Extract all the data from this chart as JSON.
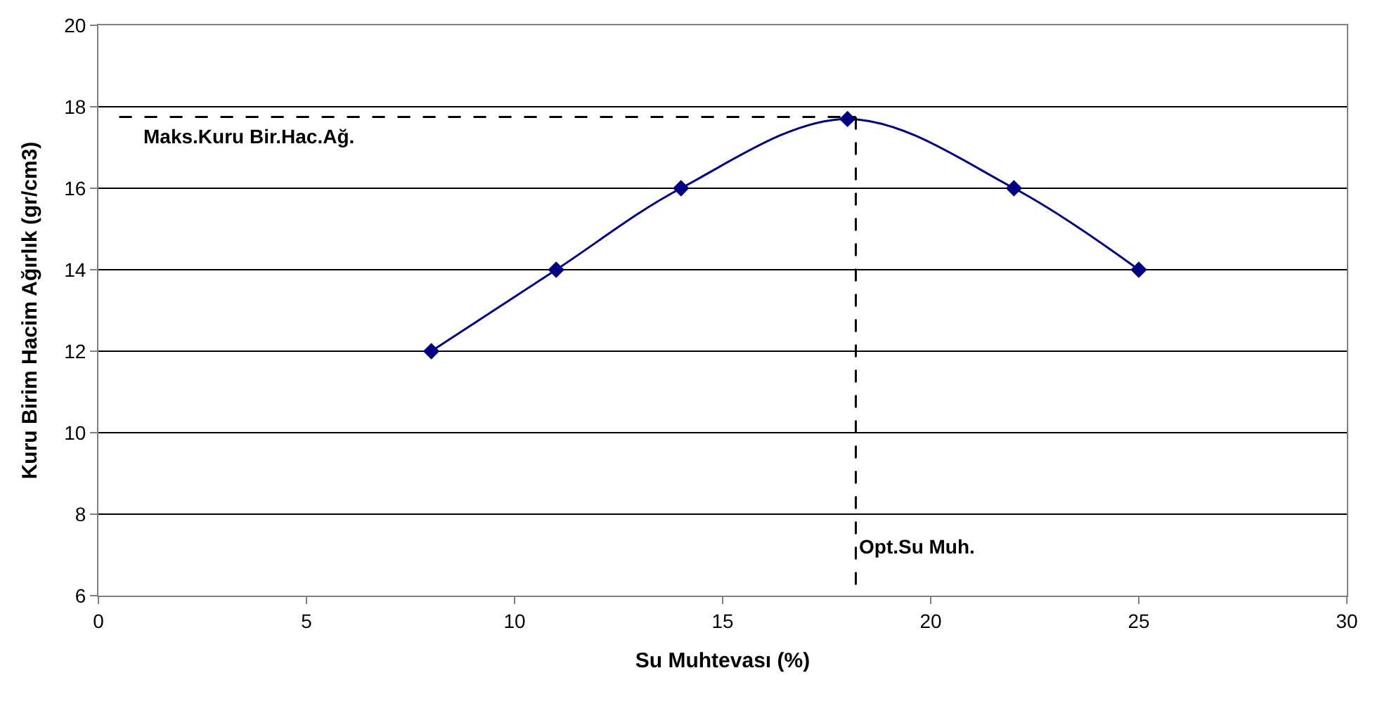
{
  "chart_data": {
    "type": "line",
    "xlabel": "Su Muhtevası (%)",
    "ylabel": "Kuru Birim Hacim Ağırlık (gr/cm3)",
    "xlim": [
      0,
      30
    ],
    "xticks": [
      0,
      5,
      10,
      15,
      20,
      25,
      30
    ],
    "ylim": [
      6,
      20
    ],
    "yticks": [
      6,
      8,
      10,
      12,
      14,
      16,
      18,
      20
    ],
    "grid": "y",
    "marker": "diamond",
    "line_style": "solid",
    "series": [
      {
        "x": [
          8,
          11,
          14,
          18,
          22,
          25
        ],
        "values": [
          12,
          14,
          16,
          17.7,
          16,
          14
        ],
        "color": "#000080"
      },
      {
        "type": "line",
        "x": [
          0.5,
          18.2
        ],
        "values": [
          17.75,
          17.75
        ],
        "color": "#000000",
        "line_style": "dashed",
        "marker": "none"
      },
      {
        "type": "line",
        "x": [
          18.2,
          18.2
        ],
        "values": [
          17.75,
          6
        ],
        "color": "#000000",
        "line_style": "dashed",
        "marker": "none"
      }
    ],
    "annotations": [
      {
        "text": "Maks.Kuru Bir.Hac.Ağ.",
        "x": 1,
        "y": 17.75
      },
      {
        "text": "Opt.Su Muh.",
        "x": 18.2,
        "y": 7.2
      }
    ]
  }
}
